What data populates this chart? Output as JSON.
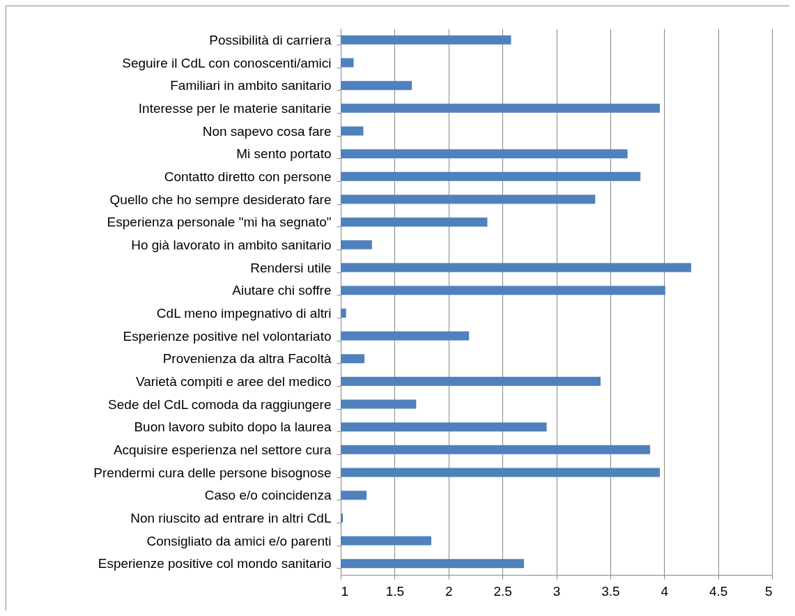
{
  "chart_data": {
    "type": "bar",
    "orientation": "horizontal",
    "categories": [
      "Possibilità di carriera",
      "Seguire il CdL con conoscenti/amici",
      "Familiari in ambito sanitario",
      "Interesse per le materie sanitarie",
      "Non sapevo cosa fare",
      "Mi sento portato",
      "Contatto diretto con persone",
      "Quello che ho sempre desiderato fare",
      "Esperienza personale \"mi ha segnato\"",
      "Ho già lavorato in ambito sanitario",
      "Rendersi utile",
      "Aiutare chi soffre",
      "CdL meno impegnativo di altri",
      "Esperienze positive nel volontariato",
      "Provenienza da altra Facoltà",
      "Varietà compiti e aree del medico",
      "Sede del CdL comoda da raggiungere",
      "Buon lavoro subito dopo la laurea",
      "Acquisire esperienza nel settore cura",
      "Prendermi cura delle persone bisognose",
      "Caso e/o coincidenza",
      "Non riuscito ad entrare in altri CdL",
      "Consigliato da amici e/o parenti",
      "Esperienze positive col mondo sanitario"
    ],
    "values": [
      2.58,
      1.12,
      1.66,
      3.96,
      1.21,
      3.66,
      3.78,
      3.36,
      2.36,
      1.29,
      4.25,
      4.01,
      1.05,
      2.19,
      1.22,
      3.41,
      1.7,
      2.91,
      3.87,
      3.96,
      1.24,
      1.02,
      1.84,
      2.7
    ],
    "color": "#4f81bd",
    "xlim": [
      1,
      5
    ],
    "xticks": [
      1,
      1.5,
      2,
      2.5,
      3,
      3.5,
      4,
      4.5,
      5
    ],
    "grid": "x"
  }
}
